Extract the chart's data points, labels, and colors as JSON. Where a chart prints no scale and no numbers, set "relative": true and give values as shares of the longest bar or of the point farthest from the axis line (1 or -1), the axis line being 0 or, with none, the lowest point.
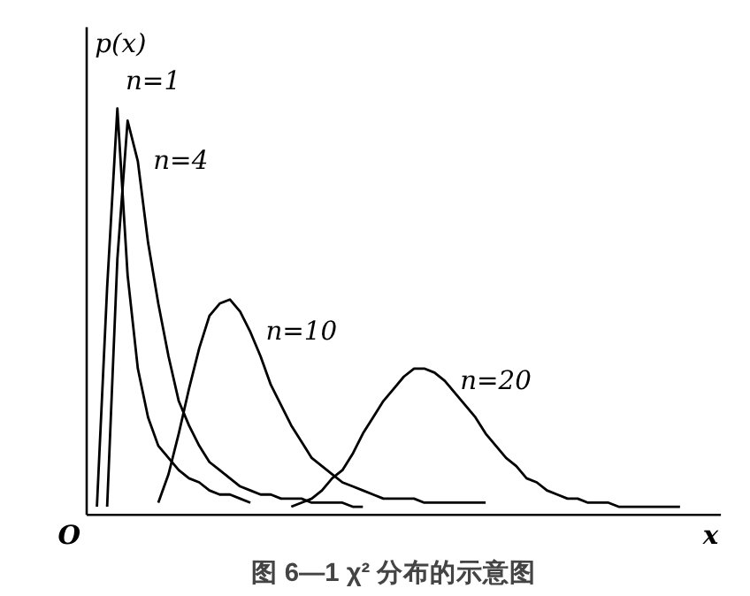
{
  "chart_data": {
    "type": "line",
    "relative": true,
    "title": "图 6—1 χ² 分布的示意图",
    "xlabel": "x",
    "ylabel": "p(x)",
    "annotations": [
      "O"
    ],
    "tick_labels": false,
    "grid": false,
    "legend": false,
    "marker": "none",
    "line_style": "solid",
    "categories": [
      null,
      null,
      null,
      null,
      null,
      null,
      null,
      null,
      null,
      null,
      null,
      null,
      null,
      null,
      null,
      null,
      null,
      null,
      null,
      null,
      null,
      null,
      null,
      null,
      null,
      null,
      null,
      null,
      null,
      null,
      null,
      null,
      null,
      null,
      null,
      null,
      null,
      null,
      null,
      null,
      null,
      null,
      null,
      null,
      null,
      null,
      null,
      null,
      null,
      null,
      null,
      null,
      null,
      null,
      null,
      null,
      null,
      null
    ],
    "series": [
      {
        "name": "n=1",
        "color": "#000000",
        "values": [
          0.02,
          0.56,
          1.0,
          0.59,
          0.36,
          0.24,
          0.17,
          0.14,
          0.11,
          0.09,
          0.08,
          0.06,
          0.05,
          0.05,
          0.04,
          0.03,
          null,
          null,
          null,
          null,
          null,
          null,
          null,
          null,
          null,
          null,
          null,
          null,
          null,
          null,
          null,
          null,
          null,
          null,
          null,
          null,
          null,
          null,
          null,
          null,
          null,
          null,
          null,
          null,
          null,
          null,
          null,
          null,
          null,
          null,
          null,
          null,
          null,
          null,
          null,
          null,
          null,
          null
        ]
      },
      {
        "name": "n=4",
        "color": "#000000",
        "values": [
          null,
          0.02,
          0.63,
          0.97,
          0.87,
          0.67,
          0.52,
          0.39,
          0.28,
          0.22,
          0.17,
          0.13,
          0.11,
          0.09,
          0.07,
          0.06,
          0.05,
          0.05,
          0.04,
          0.04,
          0.04,
          0.03,
          0.03,
          0.03,
          0.03,
          0.02,
          0.02,
          null,
          null,
          null,
          null,
          null,
          null,
          null,
          null,
          null,
          null,
          null,
          null,
          null,
          null,
          null,
          null,
          null,
          null,
          null,
          null,
          null,
          null,
          null,
          null,
          null,
          null,
          null,
          null,
          null,
          null,
          null
        ]
      },
      {
        "name": "n=10",
        "color": "#000000",
        "values": [
          null,
          null,
          null,
          null,
          null,
          null,
          0.03,
          0.1,
          0.2,
          0.31,
          0.41,
          0.49,
          0.52,
          0.53,
          0.5,
          0.45,
          0.39,
          0.32,
          0.27,
          0.22,
          0.18,
          0.14,
          0.12,
          0.1,
          0.08,
          0.07,
          0.06,
          0.05,
          0.04,
          0.04,
          0.04,
          0.04,
          0.03,
          0.03,
          0.03,
          0.03,
          0.03,
          0.03,
          0.03,
          null,
          null,
          null,
          null,
          null,
          null,
          null,
          null,
          null,
          null,
          null,
          null,
          null,
          null,
          null,
          null,
          null,
          null,
          null
        ]
      },
      {
        "name": "n=20",
        "color": "#000000",
        "values": [
          null,
          null,
          null,
          null,
          null,
          null,
          null,
          null,
          null,
          null,
          null,
          null,
          null,
          null,
          null,
          null,
          null,
          null,
          null,
          0.02,
          0.03,
          0.04,
          0.06,
          0.09,
          0.11,
          0.15,
          0.2,
          0.24,
          0.28,
          0.31,
          0.34,
          0.36,
          0.36,
          0.35,
          0.33,
          0.3,
          0.27,
          0.24,
          0.2,
          0.17,
          0.14,
          0.12,
          0.09,
          0.08,
          0.06,
          0.05,
          0.04,
          0.04,
          0.03,
          0.03,
          0.03,
          0.02,
          0.02,
          0.02,
          0.02,
          0.02,
          0.02,
          0.02
        ]
      }
    ]
  }
}
